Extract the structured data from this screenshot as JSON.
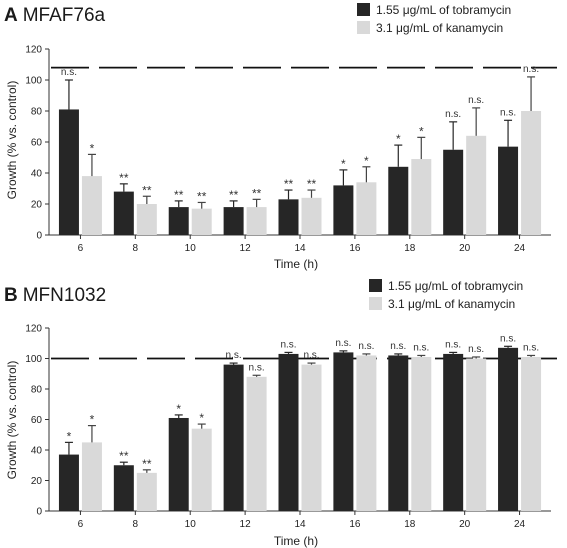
{
  "chart_data": [
    {
      "type": "bar",
      "panel_letter": "A",
      "title": "MFAF76a",
      "xlabel": "Time (h)",
      "ylabel": "Growth (% vs. control)",
      "ylim": [
        0,
        120
      ],
      "yticks": [
        0,
        20,
        40,
        60,
        80,
        100,
        120
      ],
      "reference_line": 108,
      "categories": [
        "6",
        "8",
        "10",
        "12",
        "14",
        "16",
        "18",
        "20",
        "24"
      ],
      "legend_position": "top-right",
      "series": [
        {
          "name": "1.55 μg/mL of tobramycin",
          "color": "#262626",
          "values": [
            81,
            28,
            18,
            18,
            23,
            32,
            44,
            55,
            57
          ],
          "errors": [
            19,
            5,
            4,
            4,
            6,
            10,
            14,
            18,
            17
          ],
          "significance": [
            "n.s.",
            "**",
            "**",
            "**",
            "**",
            "*",
            "*",
            "n.s.",
            "n.s."
          ]
        },
        {
          "name": "3.1 μg/mL of kanamycin",
          "color": "#d9d9d9",
          "values": [
            38,
            20,
            17,
            18,
            24,
            34,
            49,
            64,
            80
          ],
          "errors": [
            14,
            5,
            4,
            5,
            5,
            10,
            14,
            18,
            22
          ],
          "significance": [
            "*",
            "**",
            "**",
            "**",
            "**",
            "*",
            "*",
            "n.s.",
            "n.s."
          ]
        }
      ]
    },
    {
      "type": "bar",
      "panel_letter": "B",
      "title": "MFN1032",
      "xlabel": "Time (h)",
      "ylabel": "Growth (% vs. control)",
      "ylim": [
        0,
        120
      ],
      "yticks": [
        0,
        20,
        40,
        60,
        80,
        100,
        120
      ],
      "reference_line": 100,
      "categories": [
        "6",
        "8",
        "10",
        "12",
        "14",
        "16",
        "18",
        "20",
        "24"
      ],
      "legend_position": "top-right",
      "series": [
        {
          "name": "1.55 μg/mL of tobramycin",
          "color": "#262626",
          "values": [
            37,
            30,
            61,
            96,
            103,
            104,
            102,
            103,
            107
          ],
          "errors": [
            8,
            2,
            2,
            1,
            1,
            1,
            1,
            1,
            1
          ],
          "significance": [
            "*",
            "**",
            "*",
            "n.s.",
            "n.s.",
            "n.s.",
            "n.s.",
            "n.s.",
            "n.s."
          ]
        },
        {
          "name": "3.1 μg/mL of kanamycin",
          "color": "#d9d9d9",
          "values": [
            45,
            25,
            54,
            88,
            96,
            102,
            101,
            100,
            101
          ],
          "errors": [
            11,
            2,
            3,
            1,
            1,
            1,
            1,
            1,
            1
          ],
          "significance": [
            "*",
            "**",
            "*",
            "n.s.",
            "n.s.",
            "n.s.",
            "n.s.",
            "n.s.",
            "n.s."
          ]
        }
      ]
    }
  ]
}
